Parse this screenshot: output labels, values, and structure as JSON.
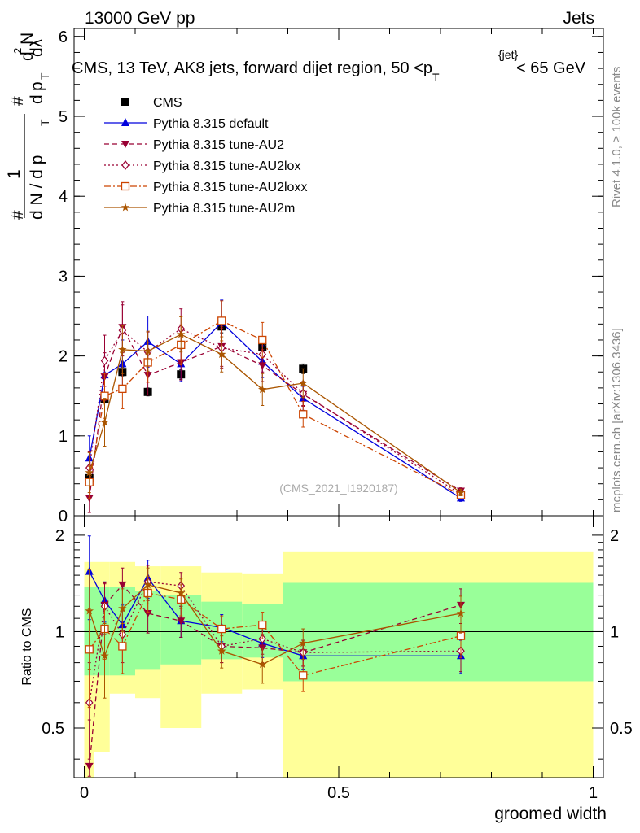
{
  "header": {
    "left_label": "13000 GeV pp",
    "right_label": "Jets",
    "side_label_1": "Rivet 4.1.0, ≥ 100k events",
    "side_label_2": "mcplots.cern.ch [arXiv:1306.3436]"
  },
  "chart_data": [
    {
      "type": "line",
      "panel": "main",
      "title_main": "CMS, 13 TeV, AK8 jets, forward dijet region, 50 <p",
      "title_sub": "T",
      "title_sup": "{jet}",
      "title_tail": "< 65 GeV",
      "ylabel_parts": [
        "#",
        "1",
        "d N / d p",
        "T",
        "#",
        "d",
        "p",
        "T",
        "d",
        "2",
        "N",
        "dλ"
      ],
      "watermark": "(CMS_2021_I1920187)",
      "xlim": [
        -0.02,
        1.02
      ],
      "ylim": [
        0,
        6.1
      ],
      "yticks": [
        0,
        1,
        2,
        3,
        4,
        5,
        6
      ],
      "ytick_labels": [
        "0",
        "1",
        "2",
        "3",
        "4",
        "5",
        "6"
      ],
      "x": [
        0.01,
        0.04,
        0.075,
        0.125,
        0.19,
        0.27,
        0.35,
        0.43,
        0.74
      ],
      "series": [
        {
          "name": "CMS",
          "color": "#000000",
          "marker": "square",
          "dash": "none",
          "values": [
            0.47,
            1.46,
            1.8,
            1.55,
            1.77,
            2.37,
            2.11,
            1.84,
            0.26
          ],
          "errors": [
            0.04,
            0.05,
            0.06,
            0.05,
            0.06,
            0.08,
            0.07,
            0.06,
            0.02
          ]
        },
        {
          "name": "Pythia 8.315 default",
          "color": "#0000dd",
          "marker": "triangle-up",
          "dash": "none",
          "values": [
            0.72,
            1.76,
            1.9,
            2.18,
            1.9,
            2.42,
            1.93,
            1.47,
            0.22
          ],
          "errors": [
            0.28,
            0.25,
            0.3,
            0.32,
            0.22,
            0.28,
            0.2,
            0.15,
            0.04
          ]
        },
        {
          "name": "Pythia 8.315 tune-AU2",
          "color": "#990033",
          "marker": "triangle-down",
          "dash": "6,4",
          "values": [
            0.22,
            1.74,
            2.36,
            1.76,
            1.92,
            2.12,
            1.88,
            1.52,
            0.31
          ],
          "errors": [
            0.18,
            0.3,
            0.32,
            0.25,
            0.22,
            0.25,
            0.2,
            0.15,
            0.04
          ]
        },
        {
          "name": "Pythia 8.315 tune-AU2lox",
          "color": "#990033",
          "marker": "diamond",
          "dash": "2,3",
          "values": [
            0.6,
            1.94,
            2.32,
            2.05,
            2.34,
            2.1,
            2.02,
            1.53,
            0.27
          ],
          "errors": [
            0.2,
            0.32,
            0.32,
            0.25,
            0.25,
            0.25,
            0.22,
            0.15,
            0.04
          ]
        },
        {
          "name": "Pythia 8.315 tune-AU2loxx",
          "color": "#cc4400",
          "marker": "square-open",
          "dash": "8,3,2,3",
          "values": [
            0.42,
            1.5,
            1.59,
            1.92,
            2.14,
            2.44,
            2.2,
            1.27,
            0.26
          ],
          "errors": [
            0.2,
            0.28,
            0.25,
            0.25,
            0.25,
            0.25,
            0.22,
            0.16,
            0.04
          ]
        },
        {
          "name": "Pythia 8.315 tune-AU2m",
          "color": "#aa5500",
          "marker": "star",
          "dash": "none",
          "values": [
            0.54,
            1.17,
            2.08,
            2.06,
            2.27,
            2.02,
            1.58,
            1.66,
            0.29
          ],
          "errors": [
            0.25,
            0.3,
            0.3,
            0.25,
            0.22,
            0.22,
            0.2,
            0.18,
            0.04
          ]
        }
      ]
    },
    {
      "type": "line",
      "panel": "ratio",
      "ylabel": "Ratio to CMS",
      "xlabel": "groomed width",
      "xlim": [
        -0.02,
        1.02
      ],
      "ylim": [
        0.35,
        2.3
      ],
      "log_y": true,
      "yticks": [
        0.5,
        1,
        2
      ],
      "ytick_labels": [
        "0.5",
        "1",
        "2"
      ],
      "xticks": [
        0,
        0.5,
        1
      ],
      "xtick_labels": [
        "0",
        "0.5",
        "1"
      ],
      "bands": {
        "edges": [
          0,
          0.02,
          0.05,
          0.1,
          0.15,
          0.23,
          0.31,
          0.39,
          1.0
        ],
        "green_lo": [
          0.73,
          0.73,
          0.73,
          0.76,
          0.79,
          0.82,
          0.83,
          0.7
        ],
        "green_hi": [
          1.38,
          1.38,
          1.38,
          1.34,
          1.3,
          1.24,
          1.22,
          1.42
        ],
        "yellow_lo": [
          0.35,
          0.42,
          0.64,
          0.62,
          0.5,
          0.64,
          0.66,
          0.35
        ],
        "yellow_hi": [
          1.65,
          1.65,
          1.65,
          1.6,
          1.6,
          1.53,
          1.52,
          1.78
        ]
      },
      "x": [
        0.01,
        0.04,
        0.075,
        0.125,
        0.19,
        0.27,
        0.35,
        0.43,
        0.74
      ],
      "series": [
        {
          "name": "Pythia 8.315 default",
          "values": [
            1.54,
            1.25,
            1.05,
            1.47,
            1.08,
            1.03,
            0.92,
            0.84,
            0.84
          ],
          "errors": [
            0.45,
            0.18,
            0.16,
            0.2,
            0.12,
            0.1,
            0.09,
            0.08,
            0.1
          ]
        },
        {
          "name": "Pythia 8.315 tune-AU2",
          "values": [
            0.38,
            1.21,
            1.4,
            1.14,
            1.08,
            0.9,
            0.89,
            0.86,
            1.21
          ],
          "errors": [
            0.15,
            0.2,
            0.18,
            0.15,
            0.12,
            0.1,
            0.09,
            0.08,
            0.15
          ]
        },
        {
          "name": "Pythia 8.315 tune-AU2lox",
          "values": [
            0.6,
            1.2,
            0.98,
            1.43,
            1.39,
            0.9,
            0.95,
            0.86,
            0.87
          ],
          "errors": [
            0.2,
            0.22,
            0.18,
            0.18,
            0.14,
            0.1,
            0.1,
            0.08,
            0.12
          ]
        },
        {
          "name": "Pythia 8.315 tune-AU2loxx",
          "values": [
            0.88,
            1.02,
            0.9,
            1.32,
            1.26,
            1.02,
            1.05,
            0.73,
            0.97
          ],
          "errors": [
            0.3,
            0.2,
            0.16,
            0.17,
            0.14,
            0.1,
            0.1,
            0.08,
            0.14
          ]
        },
        {
          "name": "Pythia 8.315 tune-AU2m",
          "values": [
            1.16,
            0.84,
            1.18,
            1.4,
            1.32,
            0.87,
            0.79,
            0.92,
            1.14
          ],
          "errors": [
            0.4,
            0.22,
            0.18,
            0.18,
            0.14,
            0.1,
            0.1,
            0.1,
            0.15
          ]
        }
      ]
    }
  ]
}
